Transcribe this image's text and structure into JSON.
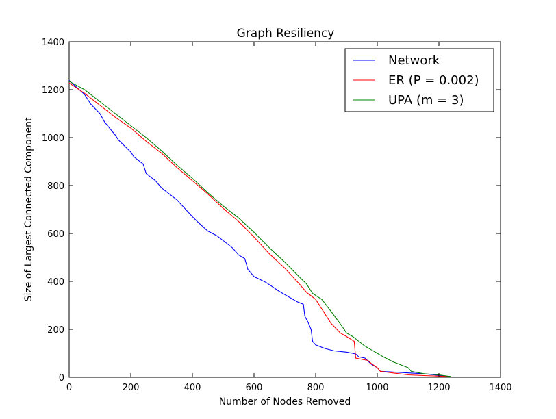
{
  "chart_data": {
    "type": "line",
    "title": "Graph Resiliency",
    "xlabel": "Number of Nodes Removed",
    "ylabel": "Size of Largest Connected Component",
    "xlim": [
      0,
      1400
    ],
    "ylim": [
      0,
      1400
    ],
    "xticks": [
      0,
      200,
      400,
      600,
      800,
      1000,
      1200,
      1400
    ],
    "yticks": [
      0,
      200,
      400,
      600,
      800,
      1000,
      1200,
      1400
    ],
    "grid": false,
    "legend_position": "top-right",
    "series": [
      {
        "name": "Network",
        "color": "#0000ff",
        "points": [
          [
            0,
            1239
          ],
          [
            20,
            1215
          ],
          [
            50,
            1180
          ],
          [
            60,
            1160
          ],
          [
            70,
            1140
          ],
          [
            100,
            1100
          ],
          [
            115,
            1065
          ],
          [
            150,
            1010
          ],
          [
            160,
            990
          ],
          [
            200,
            940
          ],
          [
            210,
            920
          ],
          [
            240,
            890
          ],
          [
            250,
            850
          ],
          [
            280,
            820
          ],
          [
            300,
            790
          ],
          [
            350,
            740
          ],
          [
            400,
            670
          ],
          [
            420,
            645
          ],
          [
            450,
            610
          ],
          [
            480,
            590
          ],
          [
            500,
            570
          ],
          [
            530,
            540
          ],
          [
            550,
            510
          ],
          [
            570,
            495
          ],
          [
            580,
            450
          ],
          [
            600,
            420
          ],
          [
            640,
            395
          ],
          [
            680,
            360
          ],
          [
            700,
            345
          ],
          [
            720,
            330
          ],
          [
            740,
            315
          ],
          [
            760,
            305
          ],
          [
            765,
            255
          ],
          [
            775,
            230
          ],
          [
            785,
            200
          ],
          [
            790,
            150
          ],
          [
            800,
            135
          ],
          [
            830,
            120
          ],
          [
            860,
            110
          ],
          [
            900,
            105
          ],
          [
            930,
            97
          ],
          [
            940,
            85
          ],
          [
            960,
            80
          ],
          [
            980,
            55
          ],
          [
            1000,
            40
          ],
          [
            1010,
            25
          ],
          [
            1050,
            22
          ],
          [
            1100,
            18
          ],
          [
            1150,
            15
          ],
          [
            1200,
            8
          ],
          [
            1240,
            3
          ]
        ]
      },
      {
        "name": "ER (P = 0.002)",
        "color": "#ff0000",
        "points": [
          [
            0,
            1228
          ],
          [
            50,
            1185
          ],
          [
            100,
            1135
          ],
          [
            150,
            1085
          ],
          [
            200,
            1040
          ],
          [
            250,
            985
          ],
          [
            300,
            935
          ],
          [
            350,
            875
          ],
          [
            400,
            820
          ],
          [
            450,
            765
          ],
          [
            500,
            705
          ],
          [
            550,
            650
          ],
          [
            600,
            585
          ],
          [
            650,
            515
          ],
          [
            700,
            455
          ],
          [
            750,
            385
          ],
          [
            770,
            355
          ],
          [
            800,
            325
          ],
          [
            820,
            285
          ],
          [
            850,
            225
          ],
          [
            880,
            185
          ],
          [
            900,
            170
          ],
          [
            925,
            150
          ],
          [
            930,
            80
          ],
          [
            950,
            75
          ],
          [
            970,
            70
          ],
          [
            980,
            58
          ],
          [
            1000,
            40
          ],
          [
            1010,
            25
          ],
          [
            1050,
            18
          ],
          [
            1100,
            10
          ],
          [
            1150,
            7
          ],
          [
            1200,
            5
          ],
          [
            1240,
            2
          ]
        ]
      },
      {
        "name": "UPA (m = 3)",
        "color": "#008000",
        "points": [
          [
            0,
            1235
          ],
          [
            50,
            1200
          ],
          [
            100,
            1150
          ],
          [
            150,
            1100
          ],
          [
            200,
            1050
          ],
          [
            250,
            1000
          ],
          [
            300,
            945
          ],
          [
            350,
            885
          ],
          [
            400,
            830
          ],
          [
            450,
            770
          ],
          [
            500,
            715
          ],
          [
            550,
            665
          ],
          [
            600,
            605
          ],
          [
            650,
            540
          ],
          [
            700,
            480
          ],
          [
            750,
            415
          ],
          [
            770,
            390
          ],
          [
            790,
            350
          ],
          [
            820,
            325
          ],
          [
            850,
            275
          ],
          [
            870,
            240
          ],
          [
            890,
            205
          ],
          [
            900,
            185
          ],
          [
            920,
            170
          ],
          [
            940,
            150
          ],
          [
            960,
            130
          ],
          [
            980,
            115
          ],
          [
            1000,
            100
          ],
          [
            1020,
            85
          ],
          [
            1050,
            65
          ],
          [
            1080,
            50
          ],
          [
            1100,
            40
          ],
          [
            1110,
            25
          ],
          [
            1150,
            15
          ],
          [
            1200,
            10
          ],
          [
            1240,
            3
          ]
        ]
      }
    ]
  }
}
